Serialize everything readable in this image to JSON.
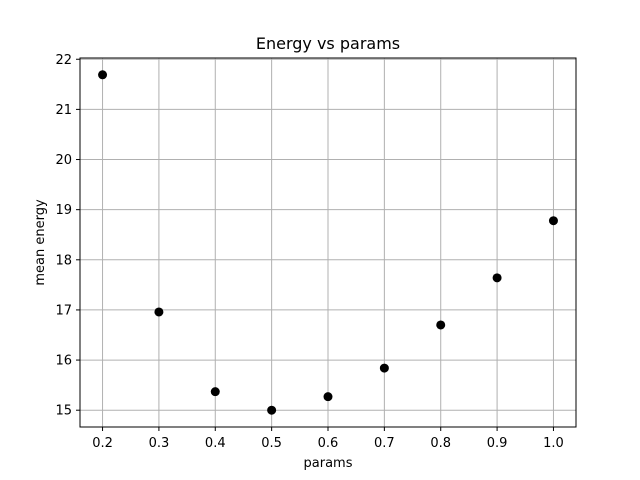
{
  "chart_data": {
    "type": "scatter",
    "title": "Energy vs params",
    "xlabel": "params",
    "ylabel": "mean energy",
    "x": [
      0.2,
      0.3,
      0.4,
      0.5,
      0.6,
      0.7,
      0.8,
      0.9,
      1.0
    ],
    "y": [
      21.69,
      16.96,
      15.37,
      15.0,
      15.27,
      15.84,
      16.7,
      17.64,
      18.78
    ],
    "x_ticks": [
      "0.2",
      "0.3",
      "0.4",
      "0.5",
      "0.6",
      "0.7",
      "0.8",
      "0.9",
      "1.0"
    ],
    "y_ticks": [
      "15",
      "16",
      "17",
      "18",
      "19",
      "20",
      "21",
      "22"
    ],
    "xlim": [
      0.16,
      1.04
    ],
    "ylim": [
      14.665,
      22.025
    ],
    "grid": true,
    "marker_color": "#000000",
    "grid_color": "#b0b0b0"
  }
}
